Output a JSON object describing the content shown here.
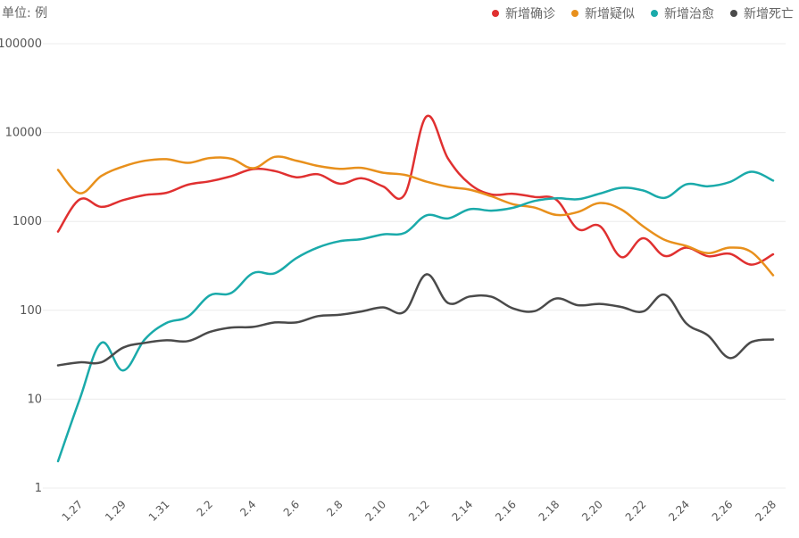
{
  "unit_label": "单位: 例",
  "legend": [
    {
      "name": "新增确诊",
      "color": "#e03030",
      "icon": "red-dot"
    },
    {
      "name": "新增疑似",
      "color": "#e8901c",
      "icon": "orange-dot"
    },
    {
      "name": "新增治愈",
      "color": "#1aaaaa",
      "icon": "teal-dot"
    },
    {
      "name": "新增死亡",
      "color": "#4a4a4a",
      "icon": "dark-gray-dot"
    }
  ],
  "chart_data": {
    "type": "line",
    "yscale": "log",
    "ylim": [
      1,
      100000
    ],
    "yticks": [
      "1",
      "10",
      "100",
      "1000",
      "10000",
      "100000"
    ],
    "xtick_labels": [
      "1.27",
      "1.29",
      "1.31",
      "2.2",
      "2.4",
      "2.6",
      "2.8",
      "2.10",
      "2.12",
      "2.14",
      "2.16",
      "2.18",
      "2.20",
      "2.22",
      "2.24",
      "2.26",
      "2.28"
    ],
    "x": [
      "1.26",
      "1.27",
      "1.28",
      "1.29",
      "1.30",
      "1.31",
      "2.1",
      "2.2",
      "2.3",
      "2.4",
      "2.5",
      "2.6",
      "2.7",
      "2.8",
      "2.9",
      "2.10",
      "2.11",
      "2.12",
      "2.13",
      "2.14",
      "2.15",
      "2.16",
      "2.17",
      "2.18",
      "2.19",
      "2.20",
      "2.21",
      "2.22",
      "2.23",
      "2.24",
      "2.25",
      "2.26",
      "2.27",
      "2.28"
    ],
    "series": [
      {
        "name": "新增确诊",
        "color": "#e03030",
        "values": [
          769,
          1771,
          1459,
          1737,
          1982,
          2102,
          2590,
          2829,
          3235,
          3887,
          3694,
          3143,
          3399,
          2656,
          3062,
          2478,
          2015,
          15152,
          5090,
          2641,
          2009,
          2048,
          1886,
          1749,
          820,
          889,
          397,
          648,
          409,
          508,
          406,
          433,
          327,
          427
        ]
      },
      {
        "name": "新增疑似",
        "color": "#e8901c",
        "values": [
          3806,
          2077,
          3248,
          4148,
          4812,
          5019,
          4562,
          5173,
          5072,
          3971,
          5328,
          4833,
          4214,
          3916,
          4008,
          3536,
          3342,
          2807,
          2450,
          2277,
          1918,
          1563,
          1432,
          1185,
          1277,
          1614,
          1361,
          882,
          620,
          530,
          439,
          508,
          452,
          248
        ]
      },
      {
        "name": "新增治愈",
        "color": "#1aaaaa",
        "values": [
          2,
          10,
          43,
          21,
          47,
          72,
          85,
          147,
          157,
          262,
          261,
          387,
          510,
          600,
          632,
          716,
          744,
          1171,
          1081,
          1373,
          1323,
          1425,
          1701,
          1824,
          1779,
          2056,
          2393,
          2230,
          1846,
          2614,
          2486,
          2777,
          3622,
          2885
        ]
      },
      {
        "name": "新增死亡",
        "color": "#4a4a4a",
        "values": [
          24,
          26,
          26,
          38,
          43,
          46,
          45,
          57,
          64,
          65,
          73,
          73,
          86,
          89,
          97,
          108,
          97,
          254,
          121,
          143,
          142,
          105,
          98,
          136,
          114,
          118,
          109,
          97,
          150,
          71,
          52,
          29,
          44,
          47
        ]
      }
    ]
  }
}
